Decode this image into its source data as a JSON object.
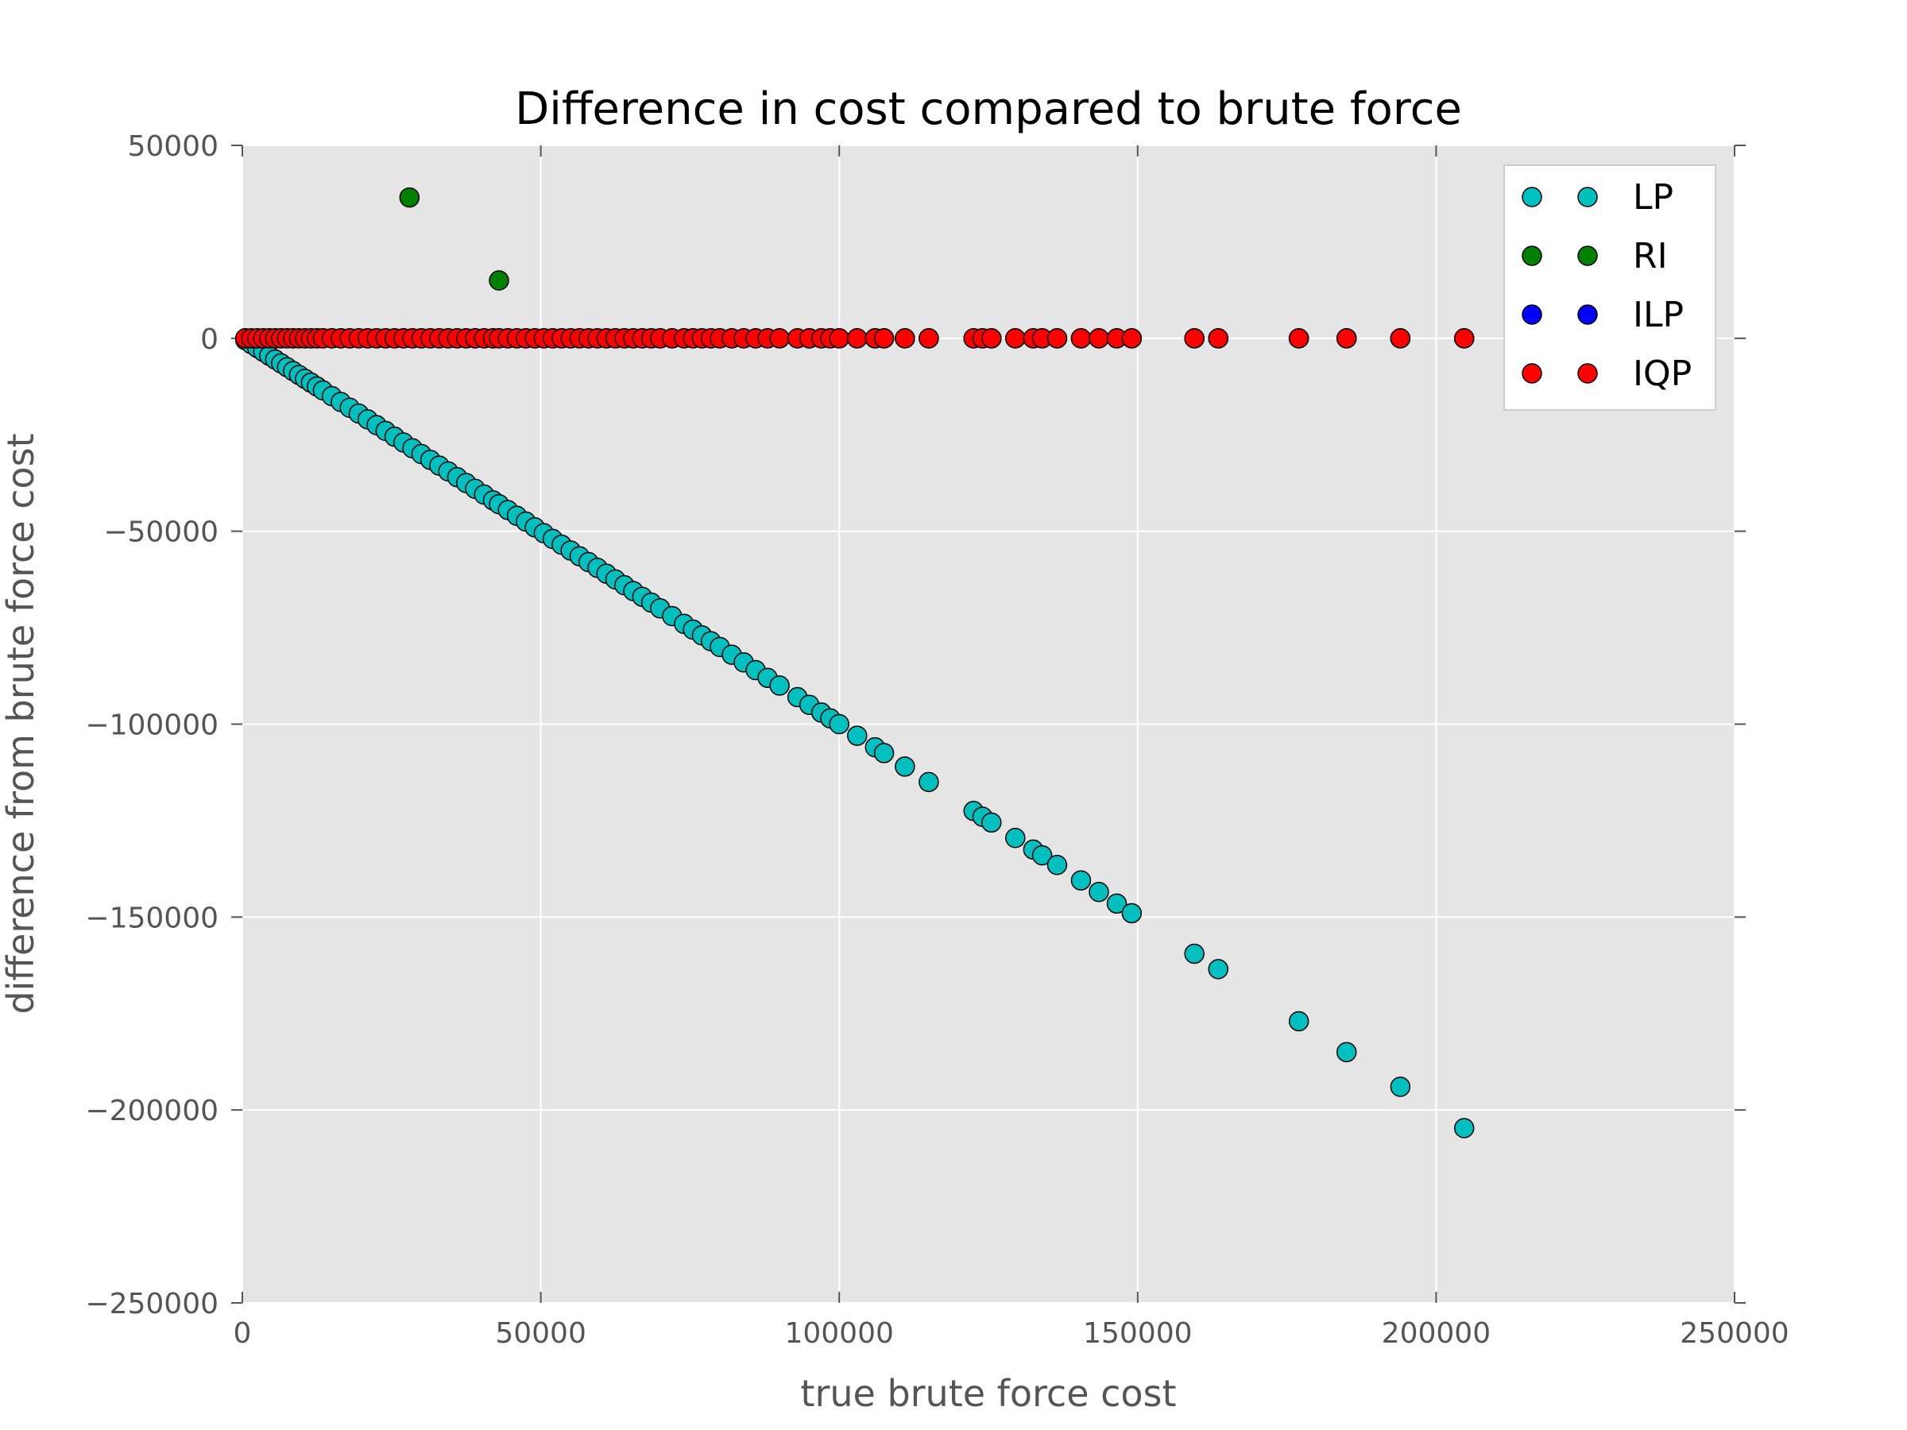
{
  "chart_data": {
    "type": "scatter",
    "title": "Difference in cost compared to brute force",
    "xlabel": "true brute force cost",
    "ylabel": "difference from brute force cost",
    "xlim": [
      0,
      250000
    ],
    "ylim": [
      -250000,
      50000
    ],
    "xticks": [
      0,
      50000,
      100000,
      150000,
      200000,
      250000
    ],
    "yticks": [
      50000,
      0,
      -50000,
      -100000,
      -150000,
      -200000,
      -250000
    ],
    "xtick_labels": [
      "0",
      "50000",
      "100000",
      "150000",
      "200000",
      "250000"
    ],
    "ytick_labels": [
      "50000",
      "0",
      "−50000",
      "−100000",
      "−150000",
      "−200000",
      "−250000"
    ],
    "grid": true,
    "legend_position": "top-right",
    "background": "#e5e5e5",
    "x": [
      500,
      1500,
      2500,
      3500,
      4500,
      5500,
      6500,
      7500,
      8500,
      9500,
      10500,
      11500,
      12500,
      13500,
      15000,
      16500,
      18000,
      19500,
      21000,
      22500,
      24000,
      25500,
      27000,
      28500,
      30000,
      31500,
      33000,
      34500,
      36000,
      37500,
      39000,
      40500,
      42000,
      43000,
      44500,
      46000,
      47500,
      49000,
      50500,
      52000,
      53500,
      55000,
      56500,
      58000,
      59500,
      61000,
      62500,
      64000,
      65500,
      67000,
      68500,
      70000,
      72000,
      74000,
      75500,
      77000,
      78500,
      80000,
      82000,
      84000,
      86000,
      88000,
      90000,
      93000,
      95000,
      97000,
      98500,
      100000,
      103000,
      106000,
      107500,
      111000,
      115000,
      122500,
      124000,
      125500,
      129500,
      132500,
      134000,
      136500,
      140500,
      143500,
      146500,
      149000,
      159500,
      163500,
      177000,
      185000,
      194000,
      204700
    ],
    "series": [
      {
        "name": "LP",
        "color": "#00bfbf",
        "y_equals_negative_x": true
      },
      {
        "name": "RI",
        "color": "#008000",
        "points": [
          [
            28000,
            36500
          ],
          [
            43000,
            15000
          ]
        ],
        "zero_for_rest": true
      },
      {
        "name": "ILP",
        "color": "#0000ff",
        "all_zero": true
      },
      {
        "name": "IQP",
        "color": "#ff0000",
        "all_zero": true
      }
    ]
  }
}
